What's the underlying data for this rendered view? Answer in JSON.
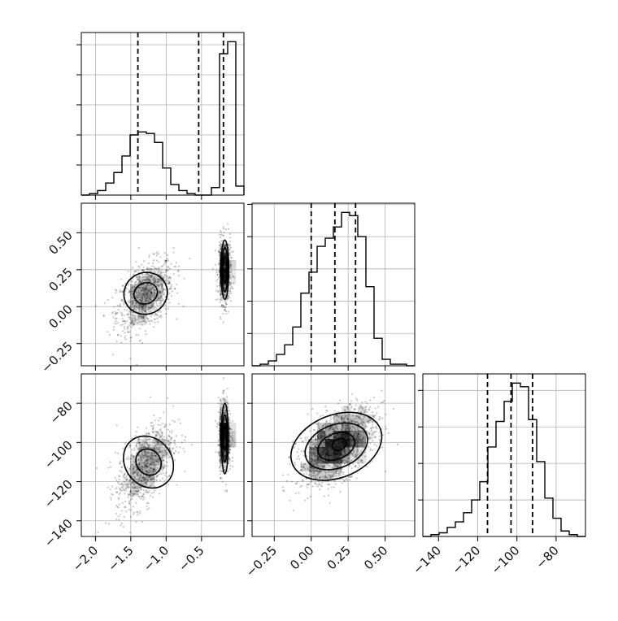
{
  "figure": {
    "type": "corner-plot",
    "background": "#ffffff"
  },
  "chart_data": {
    "type": "corner",
    "parameters": [
      {
        "range": [
          -2.2,
          0.1
        ]
      },
      {
        "range": [
          -0.4,
          0.7
        ]
      },
      {
        "range": [
          -148,
          -65
        ]
      }
    ],
    "histograms": [
      {
        "parameter": 0,
        "bin_edges": [
          -2.2,
          -2.085,
          -1.97,
          -1.855,
          -1.74,
          -1.625,
          -1.51,
          -1.395,
          -1.28,
          -1.165,
          -1.05,
          -0.935,
          -0.82,
          -0.705,
          -0.59,
          -0.475,
          -0.36,
          -0.245,
          -0.13,
          -0.015,
          0.1
        ],
        "counts": [
          0.0,
          0.01,
          0.03,
          0.08,
          0.15,
          0.26,
          0.4,
          0.42,
          0.41,
          0.35,
          0.18,
          0.07,
          0.03,
          0.01,
          0.0,
          0.0,
          0.05,
          0.94,
          1.02,
          0.06
        ],
        "quantiles": [
          -1.4,
          -0.54,
          -0.19
        ]
      },
      {
        "parameter": 1,
        "bin_edges": [
          -0.4,
          -0.345,
          -0.29,
          -0.235,
          -0.18,
          -0.125,
          -0.07,
          -0.015,
          0.04,
          0.095,
          0.15,
          0.205,
          0.26,
          0.315,
          0.37,
          0.425,
          0.48,
          0.535,
          0.59,
          0.645,
          0.7
        ],
        "counts": [
          0.0,
          0.01,
          0.03,
          0.07,
          0.13,
          0.24,
          0.45,
          0.58,
          0.74,
          0.79,
          0.86,
          0.95,
          0.93,
          0.8,
          0.49,
          0.17,
          0.04,
          0.01,
          0.01,
          0.0
        ],
        "quantiles": [
          0.0,
          0.16,
          0.3
        ]
      },
      {
        "parameter": 2,
        "bin_edges": [
          -148.0,
          -143.85,
          -139.7,
          -135.55,
          -131.4,
          -127.25,
          -123.1,
          -118.95,
          -114.8,
          -110.65,
          -106.5,
          -102.35,
          -98.2,
          -94.05,
          -89.9,
          -85.75,
          -81.6,
          -77.45,
          -73.3,
          -69.15,
          -65.0
        ],
        "counts": [
          0.0,
          0.01,
          0.02,
          0.05,
          0.08,
          0.13,
          0.2,
          0.3,
          0.49,
          0.63,
          0.74,
          0.84,
          0.82,
          0.64,
          0.41,
          0.21,
          0.1,
          0.03,
          0.01,
          0.0
        ],
        "quantiles": [
          -115.0,
          -103.0,
          -92.0
        ]
      }
    ],
    "histogram_yticks": [
      0.2,
      0.4,
      0.6,
      0.8,
      1.0
    ],
    "scatter_2d": [
      {
        "x_param": 0,
        "y_param": 1,
        "clusters": [
          {
            "center": [
              -1.3,
              0.07
            ],
            "sd": [
              0.2,
              0.12
            ],
            "corr": 0.45,
            "n": 900
          },
          {
            "center": [
              -0.17,
              0.24
            ],
            "sd": [
              0.045,
              0.11
            ],
            "corr": 0.0,
            "n": 550
          }
        ],
        "contours": [
          {
            "center": [
              -1.29,
              0.09
            ],
            "axes": [
              0.31,
              0.14
            ],
            "angle_deg": 25
          },
          {
            "center": [
              -1.29,
              0.09
            ],
            "axes": [
              0.17,
              0.07
            ],
            "angle_deg": 25
          },
          {
            "center": [
              -0.17,
              0.25
            ],
            "axes": [
              0.055,
              0.2
            ],
            "angle_deg": 0
          },
          {
            "center": [
              -0.17,
              0.25
            ],
            "axes": [
              0.04,
              0.15
            ],
            "angle_deg": 0
          },
          {
            "center": [
              -0.17,
              0.25
            ],
            "axes": [
              0.025,
              0.09
            ],
            "angle_deg": 0
          }
        ]
      },
      {
        "x_param": 0,
        "y_param": 2,
        "clusters": [
          {
            "center": [
              -1.3,
              -112
            ],
            "sd": [
              0.2,
              11
            ],
            "corr": 0.55,
            "n": 900
          },
          {
            "center": [
              -0.17,
              -97
            ],
            "sd": [
              0.045,
              9
            ],
            "corr": 0.0,
            "n": 550
          }
        ],
        "contours": [
          {
            "center": [
              -1.25,
              -110
            ],
            "axes": [
              0.33,
              14
            ],
            "angle_deg": 38
          },
          {
            "center": [
              -1.25,
              -110
            ],
            "axes": [
              0.17,
              7
            ],
            "angle_deg": 38
          },
          {
            "center": [
              -0.17,
              -98
            ],
            "axes": [
              0.05,
              18
            ],
            "angle_deg": 0
          },
          {
            "center": [
              -0.17,
              -98
            ],
            "axes": [
              0.035,
              12
            ],
            "angle_deg": 0
          },
          {
            "center": [
              -0.17,
              -98
            ],
            "axes": [
              0.022,
              6
            ],
            "angle_deg": 0
          }
        ]
      },
      {
        "x_param": 1,
        "y_param": 2,
        "clusters": [
          {
            "center": [
              0.17,
              -102
            ],
            "sd": [
              0.13,
              9.5
            ],
            "corr": 0.5,
            "n": 1400
          }
        ],
        "contours": [
          {
            "center": [
              0.17,
              -102
            ],
            "axes": [
              0.32,
              16
            ],
            "angle_deg": 22
          },
          {
            "center": [
              0.17,
              -102
            ],
            "axes": [
              0.22,
              11
            ],
            "angle_deg": 22
          },
          {
            "center": [
              0.17,
              -102
            ],
            "axes": [
              0.13,
              6.5
            ],
            "angle_deg": 22
          },
          {
            "center": [
              0.19,
              -101
            ],
            "axes": [
              0.05,
              2.8
            ],
            "angle_deg": 22
          }
        ]
      }
    ],
    "xticks": [
      {
        "values": [
          -2.0,
          -1.5,
          -1.0,
          -0.5
        ],
        "labels": [
          "−2.0",
          "−1.5",
          "−1.0",
          "−0.5"
        ]
      },
      {
        "values": [
          -0.25,
          0.0,
          0.25,
          0.5
        ],
        "labels": [
          "−0.25",
          "0.00",
          "0.25",
          "0.50"
        ]
      },
      {
        "values": [
          -140,
          -120,
          -100,
          -80
        ],
        "labels": [
          "−140",
          "−120",
          "−100",
          "−80"
        ]
      }
    ],
    "yticks": [
      {
        "values": [
          -2.0,
          -1.5,
          -1.0,
          -0.5
        ],
        "labels": [
          "",
          "",
          "",
          ""
        ]
      },
      {
        "values": [
          -0.25,
          0.0,
          0.25,
          0.5
        ],
        "labels": [
          "−0.25",
          "0.00",
          "0.25",
          "0.50"
        ]
      },
      {
        "values": [
          -140,
          -120,
          -100,
          -80
        ],
        "labels": [
          "−140",
          "−120",
          "−100",
          "−80"
        ]
      }
    ],
    "grid": true,
    "colors": {
      "line": "#000000",
      "grid": "#b0b0b0",
      "points": "#000000",
      "density": "#000000"
    }
  }
}
